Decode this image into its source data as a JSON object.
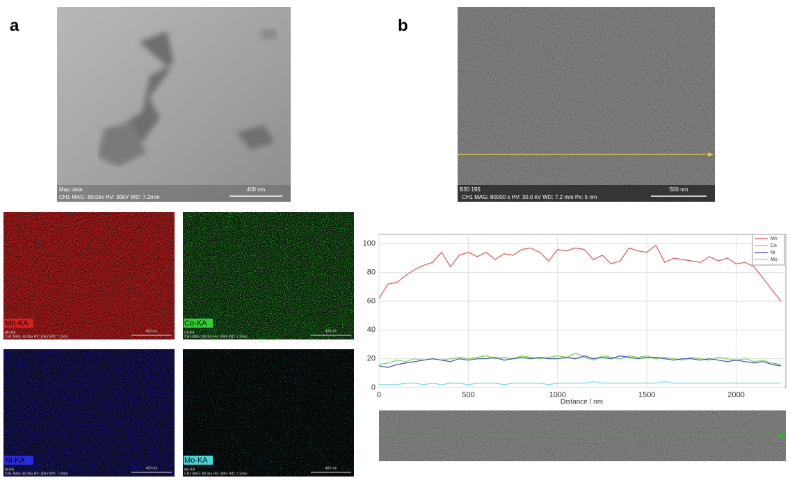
{
  "panels": {
    "a": "a",
    "b": "b"
  },
  "sem_a": {
    "label": "Map data",
    "info": "CH1  MAG: 80.0kx  HV: 30kV  WD: 7.2mm",
    "scale": "400 nm"
  },
  "sem_b": {
    "label": "B30 195",
    "info": "CH1  MAG: 80000 x HV: 30.0 kV  WD: 7.2 mm  Px: 5 nm",
    "scale": "500 nm"
  },
  "maps": [
    {
      "element": "Mn-KA",
      "caption": "Mn-KA",
      "info": "CH1  MAG: 80.0kx  HV: 30kV  WD: 7.2mm",
      "scale": "400 nm",
      "color": "#d42020"
    },
    {
      "element": "Co-KA",
      "caption": "Co-KA",
      "info": "CH1  MAG: 80.0kx  HV: 30kV  WD: 7.2mm",
      "scale": "400 nm",
      "color": "#30d030"
    },
    {
      "element": "Ni-KA",
      "caption": "Ni-KA",
      "info": "CH1  MAG: 80.0kx  HV: 30kV  WD: 7.2mm",
      "scale": "400 nm",
      "color": "#2a2ae0"
    },
    {
      "element": "Mo-KA",
      "caption": "Mo-KA",
      "info": "CH1  MAG: 80.0kx  HV: 30kV  WD: 7.2mm",
      "scale": "400 nm",
      "color": "#40d8d8"
    }
  ],
  "chart_data": {
    "type": "line",
    "x_label": "Distance / nm",
    "x": [
      0,
      50,
      100,
      150,
      200,
      250,
      300,
      350,
      400,
      450,
      500,
      550,
      600,
      650,
      700,
      750,
      800,
      850,
      900,
      950,
      1000,
      1050,
      1100,
      1150,
      1200,
      1250,
      1300,
      1350,
      1400,
      1450,
      1500,
      1550,
      1600,
      1650,
      1700,
      1750,
      1800,
      1850,
      1900,
      1950,
      2000,
      2050,
      2100,
      2150,
      2200,
      2250
    ],
    "series": [
      {
        "name": "Mn",
        "color": "#e05555",
        "values": [
          62,
          72,
          73,
          78,
          82,
          85,
          87,
          94,
          84,
          92,
          94,
          91,
          94,
          89,
          93,
          92,
          96,
          97,
          94,
          88,
          96,
          95,
          97,
          96,
          89,
          92,
          86,
          88,
          97,
          95,
          94,
          99,
          87,
          90,
          89,
          88,
          87,
          91,
          88,
          90,
          86,
          87,
          84,
          76,
          68,
          60
        ]
      },
      {
        "name": "Co",
        "color": "#66dd44",
        "values": [
          16,
          17,
          19,
          18,
          20,
          19,
          20,
          19,
          20,
          21,
          20,
          21,
          22,
          20,
          21,
          20,
          22,
          21,
          20,
          21,
          22,
          21,
          24,
          21,
          19,
          22,
          21,
          20,
          22,
          21,
          22,
          20,
          21,
          20,
          19,
          21,
          20,
          19,
          21,
          20,
          19,
          20,
          18,
          19,
          17,
          16
        ]
      },
      {
        "name": "Ni",
        "color": "#4444bb",
        "values": [
          15,
          14,
          16,
          17,
          18,
          19,
          20,
          19,
          18,
          20,
          19,
          20,
          20,
          21,
          19,
          20,
          21,
          20,
          21,
          20,
          20,
          21,
          20,
          22,
          20,
          21,
          20,
          22,
          21,
          20,
          21,
          21,
          20,
          19,
          20,
          20,
          19,
          20,
          19,
          18,
          19,
          18,
          17,
          18,
          16,
          15
        ]
      },
      {
        "name": "Mo",
        "color": "#66dddd",
        "values": [
          2,
          2,
          2,
          3,
          3,
          2,
          3,
          2,
          3,
          3,
          2,
          3,
          3,
          3,
          2,
          3,
          3,
          3,
          3,
          2,
          3,
          3,
          3,
          3,
          4,
          3,
          3,
          3,
          3,
          3,
          3,
          3,
          4,
          3,
          3,
          3,
          3,
          3,
          3,
          3,
          3,
          3,
          3,
          3,
          3,
          3
        ]
      }
    ],
    "xlim": [
      0,
      2270
    ],
    "ylim": [
      0,
      105
    ],
    "xticks": [
      0,
      500,
      1000,
      1500,
      2000
    ],
    "yticks": [
      0,
      20,
      40,
      60,
      80,
      100
    ],
    "grid": true,
    "legend": "top-right"
  }
}
